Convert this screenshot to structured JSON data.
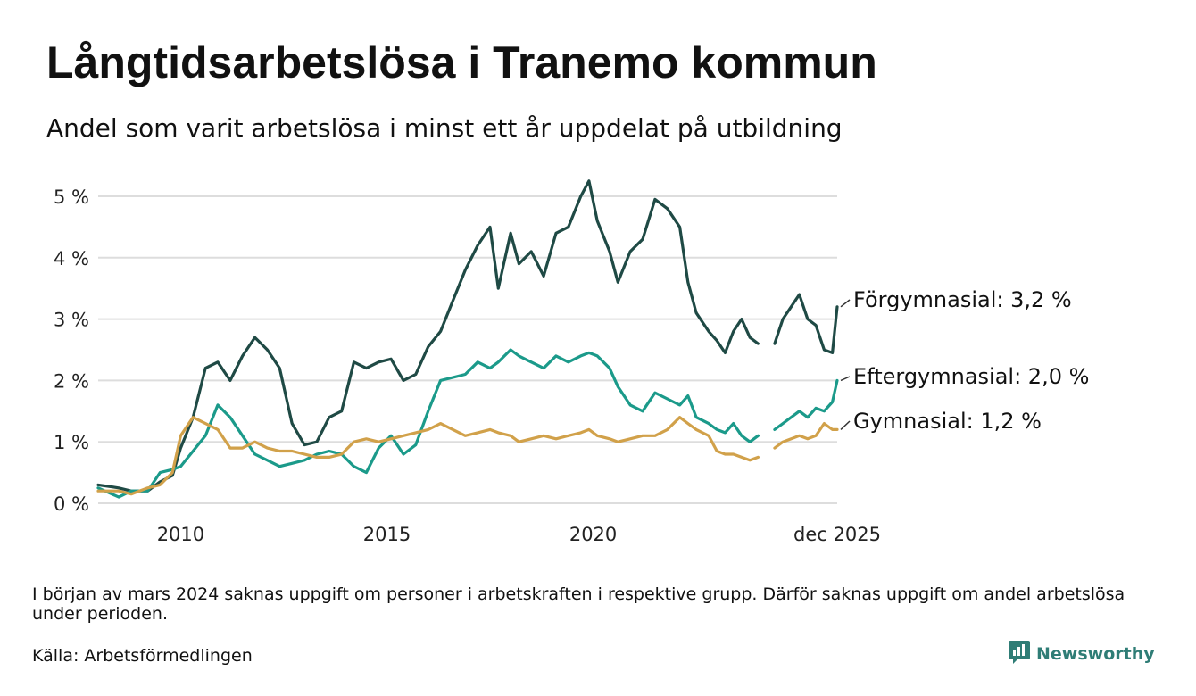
{
  "title": "Långtidsarbetslösa i Tranemo kommun",
  "subtitle": "Andel som varit arbetslösa i minst ett år uppdelat på utbildning",
  "note": "I början av mars 2024 saknas uppgift om personer i arbetskraften i respektive grupp. Därför saknas uppgift om andel arbetslösa under perioden.",
  "source": "Källa: Arbetsförmedlingen",
  "brand": "Newsworthy",
  "colors": {
    "forgymnasial": "#1f4a45",
    "eftergymnasial": "#1b9a8a",
    "gymnasial": "#d1a14a",
    "grid": "#dddddd",
    "brand": "#2f7d76"
  },
  "chart_data": {
    "type": "line",
    "title": "Långtidsarbetslösa i Tranemo kommun",
    "x_range": [
      2008.0,
      2025.917
    ],
    "ylim": [
      0,
      5
    ],
    "y_ticks": [
      0,
      1,
      2,
      3,
      4,
      5
    ],
    "y_tick_labels": [
      "0 %",
      "1 %",
      "2 %",
      "3 %",
      "4 %",
      "5 %"
    ],
    "x_ticks": [
      2010,
      2015,
      2020,
      2025.917
    ],
    "x_tick_labels": [
      "2010",
      "2015",
      "2020",
      "dec 2025"
    ],
    "grid": true,
    "gap": [
      2024.0,
      2024.4
    ],
    "series": [
      {
        "name": "Förgymnasial",
        "label": "Förgymnasial: 3,2 %",
        "color": "#1f4a45",
        "points": [
          [
            2008.0,
            0.3
          ],
          [
            2008.5,
            0.25
          ],
          [
            2008.8,
            0.2
          ],
          [
            2009.2,
            0.2
          ],
          [
            2009.5,
            0.35
          ],
          [
            2009.8,
            0.45
          ],
          [
            2010.0,
            0.9
          ],
          [
            2010.3,
            1.4
          ],
          [
            2010.6,
            2.2
          ],
          [
            2010.9,
            2.3
          ],
          [
            2011.2,
            2.0
          ],
          [
            2011.5,
            2.4
          ],
          [
            2011.8,
            2.7
          ],
          [
            2012.1,
            2.5
          ],
          [
            2012.4,
            2.2
          ],
          [
            2012.7,
            1.3
          ],
          [
            2013.0,
            0.95
          ],
          [
            2013.3,
            1.0
          ],
          [
            2013.6,
            1.4
          ],
          [
            2013.9,
            1.5
          ],
          [
            2014.2,
            2.3
          ],
          [
            2014.5,
            2.2
          ],
          [
            2014.8,
            2.3
          ],
          [
            2015.1,
            2.35
          ],
          [
            2015.4,
            2.0
          ],
          [
            2015.7,
            2.1
          ],
          [
            2016.0,
            2.55
          ],
          [
            2016.3,
            2.8
          ],
          [
            2016.6,
            3.3
          ],
          [
            2016.9,
            3.8
          ],
          [
            2017.2,
            4.2
          ],
          [
            2017.5,
            4.5
          ],
          [
            2017.7,
            3.5
          ],
          [
            2018.0,
            4.4
          ],
          [
            2018.2,
            3.9
          ],
          [
            2018.5,
            4.1
          ],
          [
            2018.8,
            3.7
          ],
          [
            2019.1,
            4.4
          ],
          [
            2019.4,
            4.5
          ],
          [
            2019.7,
            5.0
          ],
          [
            2019.9,
            5.25
          ],
          [
            2020.1,
            4.6
          ],
          [
            2020.4,
            4.1
          ],
          [
            2020.6,
            3.6
          ],
          [
            2020.9,
            4.1
          ],
          [
            2021.2,
            4.3
          ],
          [
            2021.5,
            4.95
          ],
          [
            2021.8,
            4.8
          ],
          [
            2022.1,
            4.5
          ],
          [
            2022.3,
            3.6
          ],
          [
            2022.5,
            3.1
          ],
          [
            2022.8,
            2.8
          ],
          [
            2023.0,
            2.65
          ],
          [
            2023.2,
            2.45
          ],
          [
            2023.4,
            2.8
          ],
          [
            2023.6,
            3.0
          ],
          [
            2023.8,
            2.7
          ],
          [
            2024.0,
            2.6
          ],
          [
            2024.4,
            2.6
          ],
          [
            2024.6,
            3.0
          ],
          [
            2024.8,
            3.2
          ],
          [
            2025.0,
            3.4
          ],
          [
            2025.2,
            3.0
          ],
          [
            2025.4,
            2.9
          ],
          [
            2025.6,
            2.5
          ],
          [
            2025.8,
            2.45
          ],
          [
            2025.917,
            3.2
          ]
        ]
      },
      {
        "name": "Eftergymnasial",
        "label": "Eftergymnasial: 2,0 %",
        "color": "#1b9a8a",
        "points": [
          [
            2008.0,
            0.25
          ],
          [
            2008.5,
            0.1
          ],
          [
            2008.8,
            0.2
          ],
          [
            2009.2,
            0.2
          ],
          [
            2009.5,
            0.5
          ],
          [
            2009.8,
            0.55
          ],
          [
            2010.0,
            0.6
          ],
          [
            2010.3,
            0.85
          ],
          [
            2010.6,
            1.1
          ],
          [
            2010.9,
            1.6
          ],
          [
            2011.2,
            1.4
          ],
          [
            2011.5,
            1.1
          ],
          [
            2011.8,
            0.8
          ],
          [
            2012.1,
            0.7
          ],
          [
            2012.4,
            0.6
          ],
          [
            2012.7,
            0.65
          ],
          [
            2013.0,
            0.7
          ],
          [
            2013.3,
            0.8
          ],
          [
            2013.6,
            0.85
          ],
          [
            2013.9,
            0.8
          ],
          [
            2014.2,
            0.6
          ],
          [
            2014.5,
            0.5
          ],
          [
            2014.8,
            0.9
          ],
          [
            2015.1,
            1.1
          ],
          [
            2015.4,
            0.8
          ],
          [
            2015.7,
            0.95
          ],
          [
            2016.0,
            1.5
          ],
          [
            2016.3,
            2.0
          ],
          [
            2016.6,
            2.05
          ],
          [
            2016.9,
            2.1
          ],
          [
            2017.2,
            2.3
          ],
          [
            2017.5,
            2.2
          ],
          [
            2017.7,
            2.3
          ],
          [
            2018.0,
            2.5
          ],
          [
            2018.2,
            2.4
          ],
          [
            2018.5,
            2.3
          ],
          [
            2018.8,
            2.2
          ],
          [
            2019.1,
            2.4
          ],
          [
            2019.4,
            2.3
          ],
          [
            2019.7,
            2.4
          ],
          [
            2019.9,
            2.45
          ],
          [
            2020.1,
            2.4
          ],
          [
            2020.4,
            2.2
          ],
          [
            2020.6,
            1.9
          ],
          [
            2020.9,
            1.6
          ],
          [
            2021.2,
            1.5
          ],
          [
            2021.5,
            1.8
          ],
          [
            2021.8,
            1.7
          ],
          [
            2022.1,
            1.6
          ],
          [
            2022.3,
            1.75
          ],
          [
            2022.5,
            1.4
          ],
          [
            2022.8,
            1.3
          ],
          [
            2023.0,
            1.2
          ],
          [
            2023.2,
            1.15
          ],
          [
            2023.4,
            1.3
          ],
          [
            2023.6,
            1.1
          ],
          [
            2023.8,
            1.0
          ],
          [
            2024.0,
            1.1
          ],
          [
            2024.4,
            1.2
          ],
          [
            2024.6,
            1.3
          ],
          [
            2024.8,
            1.4
          ],
          [
            2025.0,
            1.5
          ],
          [
            2025.2,
            1.4
          ],
          [
            2025.4,
            1.55
          ],
          [
            2025.6,
            1.5
          ],
          [
            2025.8,
            1.65
          ],
          [
            2025.917,
            2.0
          ]
        ]
      },
      {
        "name": "Gymnasial",
        "label": "Gymnasial: 1,2 %",
        "color": "#d1a14a",
        "points": [
          [
            2008.0,
            0.2
          ],
          [
            2008.5,
            0.2
          ],
          [
            2008.8,
            0.15
          ],
          [
            2009.2,
            0.25
          ],
          [
            2009.5,
            0.3
          ],
          [
            2009.8,
            0.5
          ],
          [
            2010.0,
            1.1
          ],
          [
            2010.3,
            1.4
          ],
          [
            2010.6,
            1.3
          ],
          [
            2010.9,
            1.2
          ],
          [
            2011.2,
            0.9
          ],
          [
            2011.5,
            0.9
          ],
          [
            2011.8,
            1.0
          ],
          [
            2012.1,
            0.9
          ],
          [
            2012.4,
            0.85
          ],
          [
            2012.7,
            0.85
          ],
          [
            2013.0,
            0.8
          ],
          [
            2013.3,
            0.75
          ],
          [
            2013.6,
            0.75
          ],
          [
            2013.9,
            0.8
          ],
          [
            2014.2,
            1.0
          ],
          [
            2014.5,
            1.05
          ],
          [
            2014.8,
            1.0
          ],
          [
            2015.1,
            1.05
          ],
          [
            2015.4,
            1.1
          ],
          [
            2015.7,
            1.15
          ],
          [
            2016.0,
            1.2
          ],
          [
            2016.3,
            1.3
          ],
          [
            2016.6,
            1.2
          ],
          [
            2016.9,
            1.1
          ],
          [
            2017.2,
            1.15
          ],
          [
            2017.5,
            1.2
          ],
          [
            2017.7,
            1.15
          ],
          [
            2018.0,
            1.1
          ],
          [
            2018.2,
            1.0
          ],
          [
            2018.5,
            1.05
          ],
          [
            2018.8,
            1.1
          ],
          [
            2019.1,
            1.05
          ],
          [
            2019.4,
            1.1
          ],
          [
            2019.7,
            1.15
          ],
          [
            2019.9,
            1.2
          ],
          [
            2020.1,
            1.1
          ],
          [
            2020.4,
            1.05
          ],
          [
            2020.6,
            1.0
          ],
          [
            2020.9,
            1.05
          ],
          [
            2021.2,
            1.1
          ],
          [
            2021.5,
            1.1
          ],
          [
            2021.8,
            1.2
          ],
          [
            2022.1,
            1.4
          ],
          [
            2022.3,
            1.3
          ],
          [
            2022.5,
            1.2
          ],
          [
            2022.8,
            1.1
          ],
          [
            2023.0,
            0.85
          ],
          [
            2023.2,
            0.8
          ],
          [
            2023.4,
            0.8
          ],
          [
            2023.6,
            0.75
          ],
          [
            2023.8,
            0.7
          ],
          [
            2024.0,
            0.75
          ],
          [
            2024.4,
            0.9
          ],
          [
            2024.6,
            1.0
          ],
          [
            2024.8,
            1.05
          ],
          [
            2025.0,
            1.1
          ],
          [
            2025.2,
            1.05
          ],
          [
            2025.4,
            1.1
          ],
          [
            2025.6,
            1.3
          ],
          [
            2025.8,
            1.2
          ],
          [
            2025.917,
            1.2
          ]
        ]
      }
    ]
  }
}
